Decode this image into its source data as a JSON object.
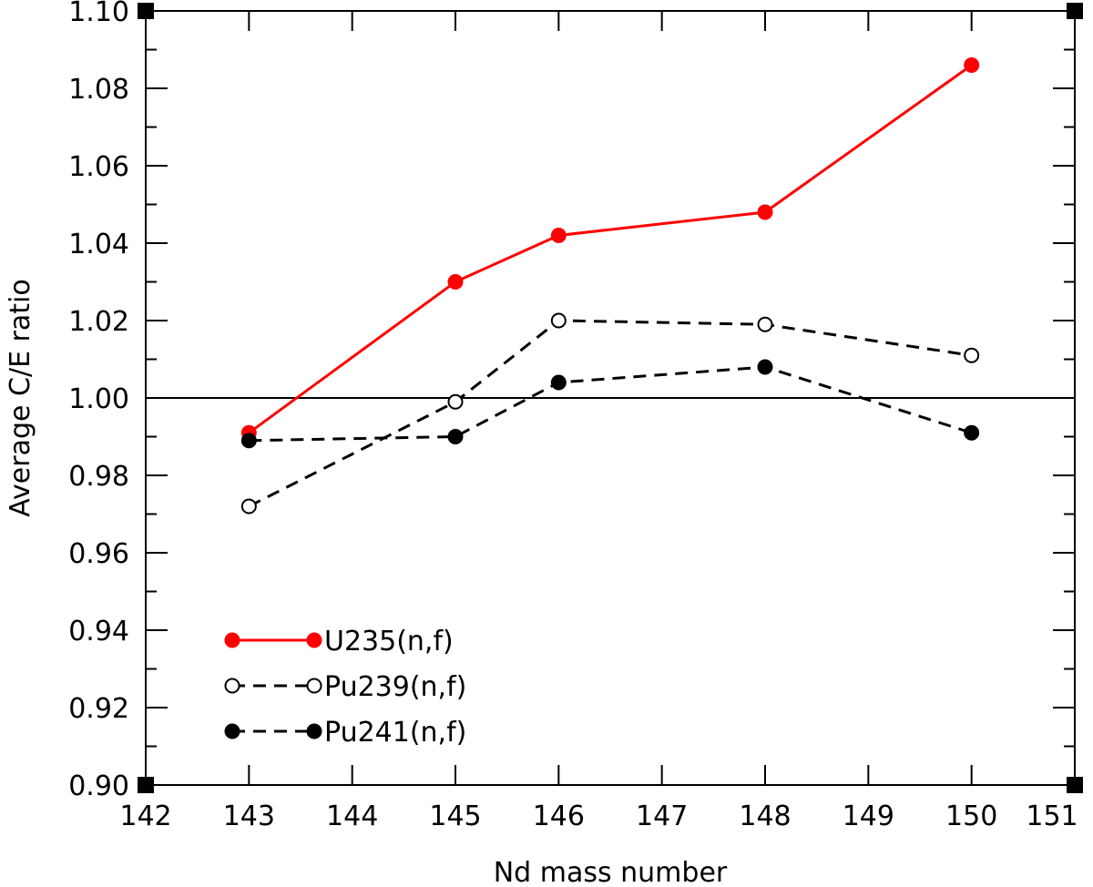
{
  "chart_data": {
    "type": "line",
    "title": "",
    "xlabel": "Nd mass number",
    "ylabel": "Average C/E ratio",
    "xlim": [
      142,
      151
    ],
    "ylim": [
      0.9,
      1.1
    ],
    "x_ticks": [
      142,
      143,
      144,
      145,
      146,
      147,
      148,
      149,
      150,
      151
    ],
    "x_tick_labels": [
      "142",
      "143",
      "144",
      "145",
      "146",
      "147",
      "148",
      "149",
      "150",
      "151"
    ],
    "y_ticks": [
      0.9,
      0.92,
      0.94,
      0.96,
      0.98,
      1.0,
      1.02,
      1.04,
      1.06,
      1.08,
      1.1
    ],
    "y_tick_labels": [
      "0.90",
      "0.92",
      "0.94",
      "0.96",
      "0.98",
      "1.00",
      "1.02",
      "1.04",
      "1.06",
      "1.08",
      "1.10"
    ],
    "reference_line": 1.0,
    "grid": false,
    "legend_position": "bottom-left",
    "series": [
      {
        "name": "U235(n,f)",
        "color": "#ff0000",
        "line_style": "solid",
        "marker": "filled-circle",
        "x": [
          143,
          145,
          146,
          148,
          150
        ],
        "y": [
          0.991,
          1.03,
          1.042,
          1.048,
          1.086
        ]
      },
      {
        "name": "Pu239(n,f)",
        "color": "#000000",
        "line_style": "dashed",
        "marker": "open-circle",
        "x": [
          143,
          145,
          146,
          148,
          150
        ],
        "y": [
          0.972,
          0.999,
          1.02,
          1.019,
          1.011
        ]
      },
      {
        "name": "Pu241(n,f)",
        "color": "#000000",
        "line_style": "dashed",
        "marker": "filled-circle",
        "x": [
          143,
          145,
          146,
          148,
          150
        ],
        "y": [
          0.989,
          0.99,
          1.004,
          1.008,
          0.991
        ]
      }
    ]
  }
}
